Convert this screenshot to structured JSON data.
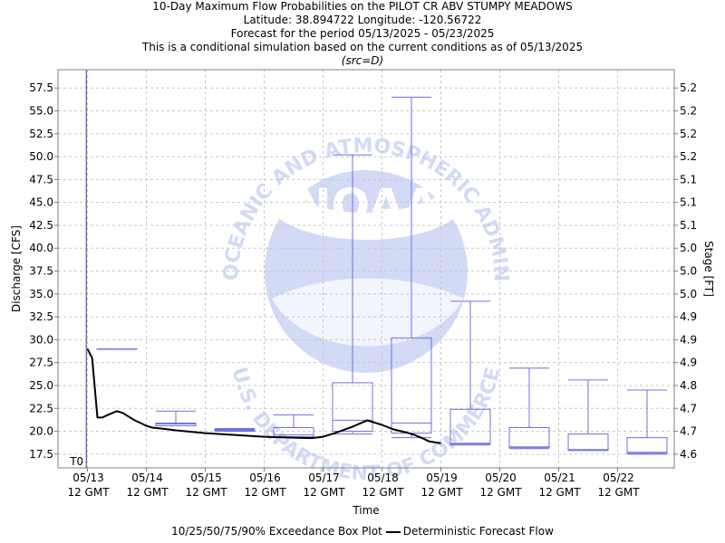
{
  "header": {
    "title_line1": "10-Day Maximum Flow Probabilities on the PILOT CR ABV STUMPY MEADOWS",
    "title_line2": "Latitude: 38.894722 Longitude: -120.56722",
    "title_line3": "Forecast for the period 05/13/2025 - 05/23/2025",
    "title_line4": "This is a conditional simulation based on the current conditions as of 05/13/2025",
    "src": "(src=D)"
  },
  "legend": {
    "boxplot_label": "10/25/50/75/90% Exceedance Box Plot",
    "flow_label": "Deterministic Forecast Flow"
  },
  "watermark": {
    "logo_text": "NOAA",
    "ring_top": "NATIONAL OCEANIC AND ATMOSPHERIC ADMINISTRATION",
    "ring_bottom": "U.S. DEPARTMENT OF COMMERCE"
  },
  "chart_data": {
    "type": "box",
    "xlabel": "Time",
    "ylabel": "Discharge [CFS]",
    "y2label": "Stage [FT]",
    "ylim": [
      16.0,
      59.5
    ],
    "yticks": [
      "17.5",
      "20.0",
      "22.5",
      "25.0",
      "27.5",
      "30.0",
      "32.5",
      "35.0",
      "37.5",
      "40.0",
      "42.5",
      "45.0",
      "47.5",
      "50.0",
      "52.5",
      "55.0",
      "57.5"
    ],
    "y2ticks": [
      "4.6",
      "4.7",
      "4.7",
      "4.8",
      "4.9",
      "4.9",
      "4.9",
      "5.0",
      "5.0",
      "5.0",
      "5.1",
      "5.1",
      "5.1",
      "5.2",
      "5.2",
      "5.2",
      "5.2"
    ],
    "xticks": [
      {
        "day": 0,
        "line1": "05/13",
        "line2": "12 GMT"
      },
      {
        "day": 1,
        "line1": "05/14",
        "line2": "12 GMT"
      },
      {
        "day": 2,
        "line1": "05/15",
        "line2": "12 GMT"
      },
      {
        "day": 3,
        "line1": "05/16",
        "line2": "12 GMT"
      },
      {
        "day": 4,
        "line1": "05/17",
        "line2": "12 GMT"
      },
      {
        "day": 5,
        "line1": "05/18",
        "line2": "12 GMT"
      },
      {
        "day": 6,
        "line1": "05/19",
        "line2": "12 GMT"
      },
      {
        "day": 7,
        "line1": "05/20",
        "line2": "12 GMT"
      },
      {
        "day": 8,
        "line1": "05/21",
        "line2": "12 GMT"
      },
      {
        "day": 9,
        "line1": "05/22",
        "line2": "12 GMT"
      }
    ],
    "t0_label": "T0",
    "t0_day": -0.02,
    "grid": true,
    "colors": {
      "box": "#7070e0",
      "flow": "#000000",
      "t0": "#3030c0",
      "grid": "#c8c8c8"
    },
    "boxes": [
      {
        "day": 0.5,
        "p10": 29.0,
        "p25": 29.0,
        "p50": 29.0,
        "p75": 29.0,
        "p90": 29.0
      },
      {
        "day": 1.5,
        "p10": 20.6,
        "p25": 20.6,
        "p50": 20.8,
        "p75": 20.9,
        "p90": 22.2
      },
      {
        "day": 2.5,
        "p10": 20.0,
        "p25": 20.0,
        "p50": 20.1,
        "p75": 20.2,
        "p90": 20.3
      },
      {
        "day": 3.5,
        "p10": 19.3,
        "p25": 19.4,
        "p50": 19.6,
        "p75": 20.4,
        "p90": 21.8
      },
      {
        "day": 4.5,
        "p10": 19.7,
        "p25": 20.0,
        "p50": 21.2,
        "p75": 25.3,
        "p90": 50.2
      },
      {
        "day": 5.5,
        "p10": 19.3,
        "p25": 19.8,
        "p50": 20.9,
        "p75": 30.2,
        "p90": 56.5
      },
      {
        "day": 6.5,
        "p10": 18.5,
        "p25": 18.6,
        "p50": 18.7,
        "p75": 22.4,
        "p90": 34.2
      },
      {
        "day": 7.5,
        "p10": 18.1,
        "p25": 18.2,
        "p50": 18.3,
        "p75": 20.4,
        "p90": 26.9
      },
      {
        "day": 8.5,
        "p10": 17.9,
        "p25": 17.9,
        "p50": 18.0,
        "p75": 19.7,
        "p90": 25.6
      },
      {
        "day": 9.5,
        "p10": 17.5,
        "p25": 17.6,
        "p50": 17.7,
        "p75": 19.3,
        "p90": 24.5
      }
    ],
    "flow_series": {
      "name": "Deterministic Forecast Flow",
      "x": [
        0.0,
        0.08,
        0.17,
        0.25,
        0.35,
        0.5,
        0.6,
        0.7,
        0.8,
        0.9,
        1.0,
        1.1,
        1.25,
        1.5,
        2.0,
        2.5,
        3.0,
        3.5,
        3.8,
        4.0,
        4.2,
        4.5,
        4.75,
        5.0,
        5.2,
        5.4,
        5.55,
        5.7,
        5.8,
        5.9,
        6.0
      ],
      "y": [
        29.0,
        28.0,
        21.5,
        21.5,
        21.8,
        22.2,
        22.0,
        21.6,
        21.2,
        20.9,
        20.6,
        20.4,
        20.3,
        20.1,
        19.8,
        19.6,
        19.4,
        19.3,
        19.25,
        19.4,
        19.8,
        20.5,
        21.2,
        20.7,
        20.2,
        19.9,
        19.6,
        19.2,
        18.9,
        18.8,
        18.7
      ]
    }
  }
}
